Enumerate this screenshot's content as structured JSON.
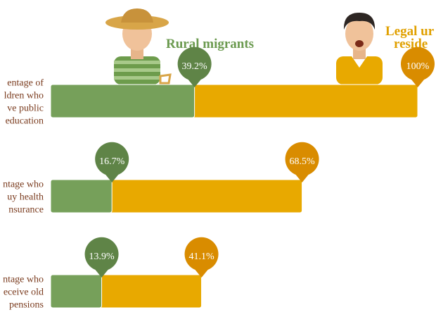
{
  "chart_data": {
    "type": "bar",
    "categories": [
      [
        "entage of",
        "ldren who",
        "ve public",
        "education"
      ],
      [
        "ntage who",
        "uy health",
        "nsurance"
      ],
      [
        "ntage who",
        "eceive old",
        "pensions"
      ]
    ],
    "series": [
      {
        "name": "Rural migrants",
        "color": "#76a05a",
        "label_color": "#5f8447",
        "values": [
          39.2,
          16.7,
          13.9
        ],
        "value_labels": [
          "39.2%",
          "16.7%",
          "13.9%"
        ]
      },
      {
        "name": "Legal ur",
        "name_line2": "reside",
        "color": "#e8a900",
        "label_color": "#d98c00",
        "values": [
          100,
          68.5,
          41.1
        ],
        "value_labels": [
          "100%",
          "68.5%",
          "41.1%"
        ]
      }
    ],
    "xlim": [
      0,
      100
    ]
  }
}
